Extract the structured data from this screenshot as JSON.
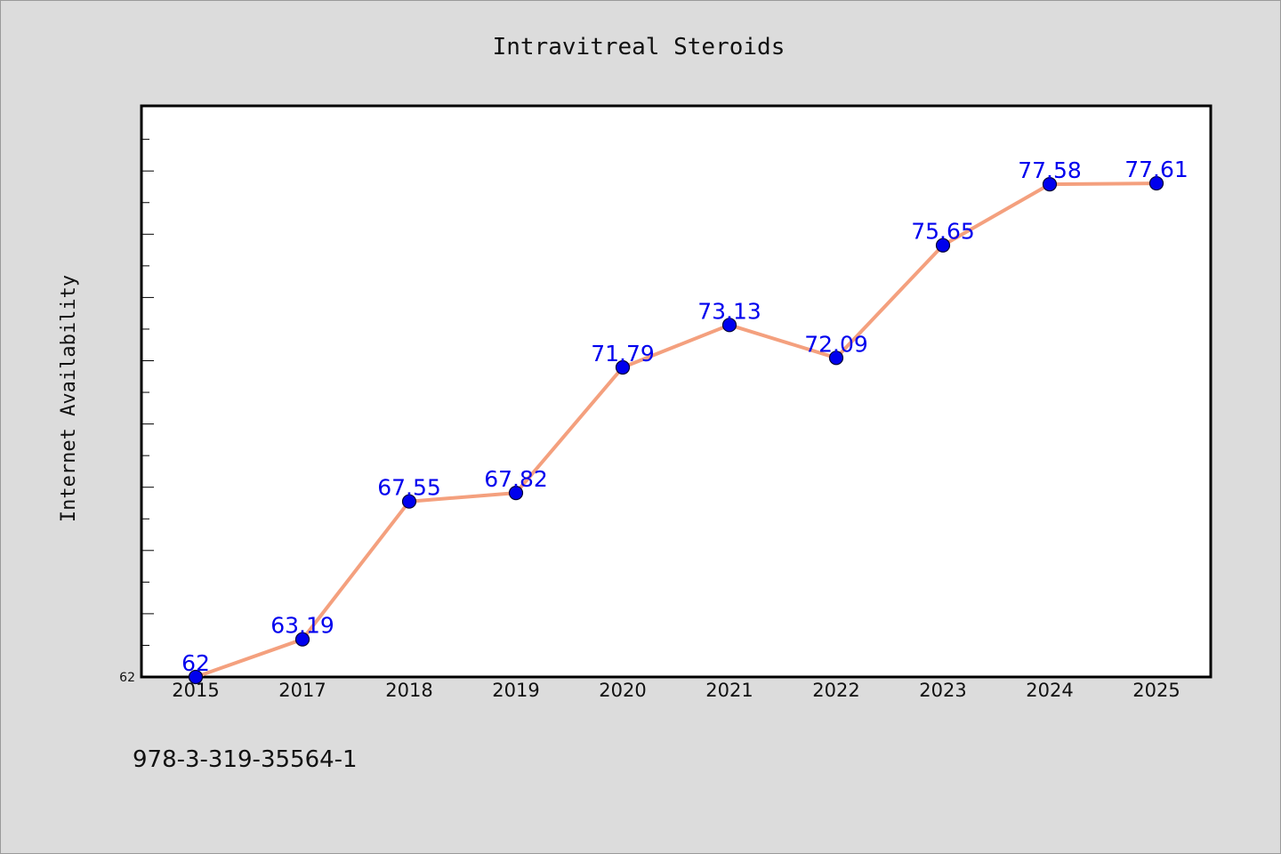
{
  "chart_data": {
    "type": "line",
    "title": "Intravitreal Steroids",
    "ylabel": "Internet Availability",
    "xlabel": "",
    "categories": [
      "2015",
      "2017",
      "2018",
      "2019",
      "2020",
      "2021",
      "2022",
      "2023",
      "2024",
      "2025"
    ],
    "series": [
      {
        "values": [
          62,
          63.19,
          67.55,
          67.82,
          71.79,
          73.13,
          72.09,
          75.65,
          77.58,
          77.61
        ],
        "labels": [
          "62",
          "63.19",
          "67.55",
          "67.82",
          "71.79",
          "73.13",
          "72.09",
          "75.65",
          "77.58",
          "77.61"
        ]
      }
    ],
    "ylim": [
      62,
      80
    ],
    "y_tick_labels": [
      "62"
    ],
    "grid": false,
    "legend": "none",
    "colors": {
      "line": "#f4a07e",
      "marker": "#0000ee",
      "marker_edge": "#000033",
      "data_label": "#0000ee",
      "plot_background": "#ffffff",
      "figure_background": "#dcdcdc"
    }
  },
  "footnote": "978-3-319-35564-1"
}
